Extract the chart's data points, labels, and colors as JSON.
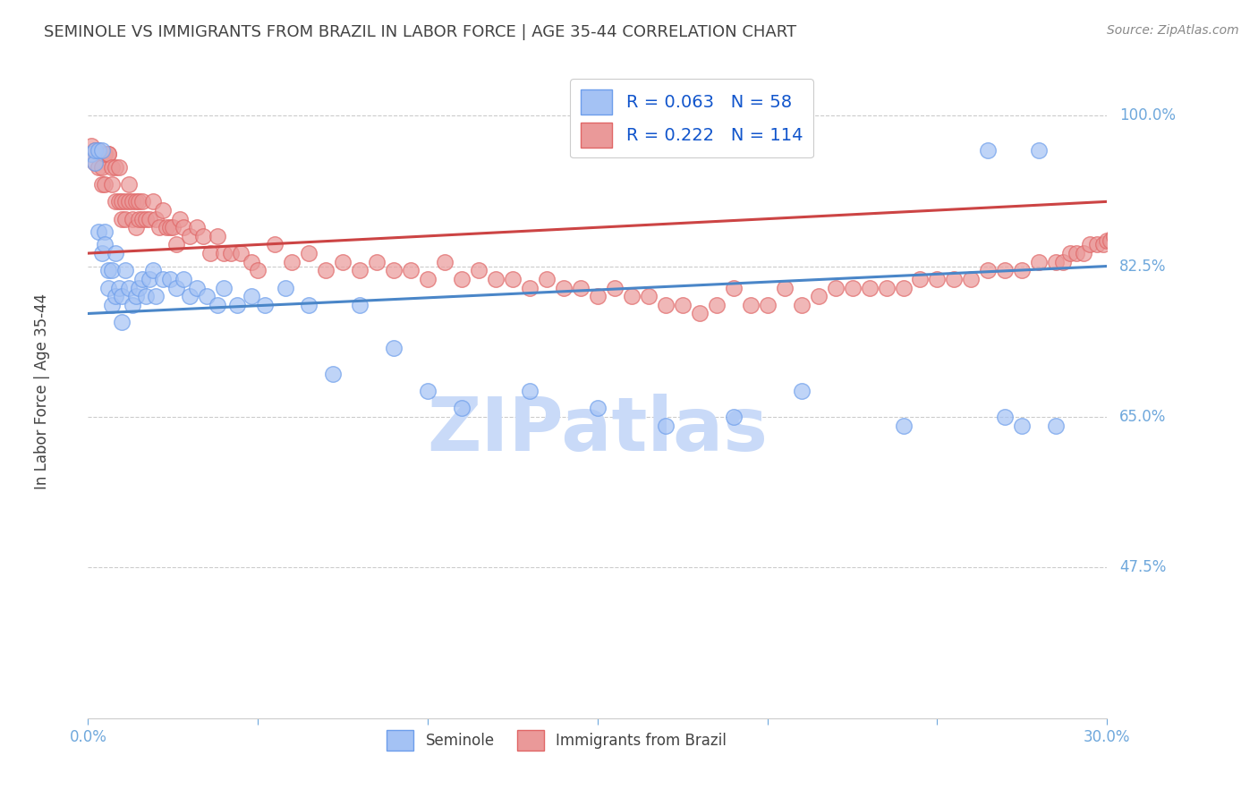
{
  "title": "SEMINOLE VS IMMIGRANTS FROM BRAZIL IN LABOR FORCE | AGE 35-44 CORRELATION CHART",
  "source": "Source: ZipAtlas.com",
  "ylabel": "In Labor Force | Age 35-44",
  "xlim": [
    0.0,
    0.3
  ],
  "ylim": [
    0.3,
    1.06
  ],
  "blue_R": 0.063,
  "blue_N": 58,
  "pink_R": 0.222,
  "pink_N": 114,
  "blue_color": "#a4c2f4",
  "pink_color": "#ea9999",
  "blue_edge_color": "#6d9eeb",
  "pink_edge_color": "#e06666",
  "blue_line_color": "#4a86c8",
  "pink_line_color": "#cc4444",
  "legend_text_color": "#1155cc",
  "title_color": "#434343",
  "axis_label_color": "#434343",
  "tick_color": "#6fa8dc",
  "gridline_color": "#cccccc",
  "watermark_color": "#c9daf8",
  "ytick_vals": [
    0.475,
    0.65,
    0.825,
    1.0
  ],
  "ytick_labels": [
    "47.5%",
    "65.0%",
    "82.5%",
    "100.0%"
  ],
  "xtick_vals": [
    0.0,
    0.05,
    0.1,
    0.15,
    0.2,
    0.25,
    0.3
  ],
  "xtick_labels": [
    "0.0%",
    "",
    "",
    "",
    "",
    "",
    "30.0%"
  ],
  "blue_line_y0": 0.77,
  "blue_line_y1": 0.825,
  "pink_line_y0": 0.84,
  "pink_line_y1": 0.9,
  "blue_x": [
    0.001,
    0.002,
    0.002,
    0.003,
    0.003,
    0.004,
    0.004,
    0.005,
    0.005,
    0.006,
    0.006,
    0.007,
    0.007,
    0.008,
    0.008,
    0.009,
    0.01,
    0.01,
    0.011,
    0.012,
    0.013,
    0.014,
    0.015,
    0.016,
    0.017,
    0.018,
    0.019,
    0.02,
    0.022,
    0.024,
    0.026,
    0.028,
    0.03,
    0.032,
    0.035,
    0.038,
    0.04,
    0.044,
    0.048,
    0.052,
    0.058,
    0.065,
    0.072,
    0.08,
    0.09,
    0.1,
    0.11,
    0.13,
    0.15,
    0.17,
    0.19,
    0.21,
    0.24,
    0.265,
    0.27,
    0.275,
    0.28,
    0.285
  ],
  "blue_y": [
    0.955,
    0.945,
    0.96,
    0.865,
    0.96,
    0.84,
    0.96,
    0.865,
    0.85,
    0.82,
    0.8,
    0.82,
    0.78,
    0.79,
    0.84,
    0.8,
    0.79,
    0.76,
    0.82,
    0.8,
    0.78,
    0.79,
    0.8,
    0.81,
    0.79,
    0.81,
    0.82,
    0.79,
    0.81,
    0.81,
    0.8,
    0.81,
    0.79,
    0.8,
    0.79,
    0.78,
    0.8,
    0.78,
    0.79,
    0.78,
    0.8,
    0.78,
    0.7,
    0.78,
    0.73,
    0.68,
    0.66,
    0.68,
    0.66,
    0.64,
    0.65,
    0.68,
    0.64,
    0.96,
    0.65,
    0.64,
    0.96,
    0.64
  ],
  "pink_x": [
    0.001,
    0.001,
    0.002,
    0.002,
    0.003,
    0.003,
    0.004,
    0.004,
    0.005,
    0.005,
    0.006,
    0.006,
    0.007,
    0.007,
    0.008,
    0.008,
    0.009,
    0.009,
    0.01,
    0.01,
    0.011,
    0.011,
    0.012,
    0.012,
    0.013,
    0.013,
    0.014,
    0.014,
    0.015,
    0.015,
    0.016,
    0.016,
    0.017,
    0.018,
    0.019,
    0.02,
    0.021,
    0.022,
    0.023,
    0.024,
    0.025,
    0.026,
    0.027,
    0.028,
    0.03,
    0.032,
    0.034,
    0.036,
    0.038,
    0.04,
    0.042,
    0.045,
    0.048,
    0.05,
    0.055,
    0.06,
    0.065,
    0.07,
    0.075,
    0.08,
    0.085,
    0.09,
    0.095,
    0.1,
    0.105,
    0.11,
    0.115,
    0.12,
    0.125,
    0.13,
    0.135,
    0.14,
    0.145,
    0.15,
    0.155,
    0.16,
    0.165,
    0.17,
    0.175,
    0.18,
    0.185,
    0.19,
    0.195,
    0.2,
    0.205,
    0.21,
    0.215,
    0.22,
    0.225,
    0.23,
    0.235,
    0.24,
    0.245,
    0.25,
    0.255,
    0.26,
    0.265,
    0.27,
    0.275,
    0.28,
    0.285,
    0.287,
    0.289,
    0.291,
    0.293,
    0.295,
    0.297,
    0.299,
    0.3,
    0.301,
    0.302,
    0.303,
    0.304,
    0.305
  ],
  "pink_y": [
    0.955,
    0.965,
    0.945,
    0.96,
    0.96,
    0.94,
    0.94,
    0.92,
    0.92,
    0.955,
    0.955,
    0.955,
    0.94,
    0.92,
    0.94,
    0.9,
    0.94,
    0.9,
    0.9,
    0.88,
    0.9,
    0.88,
    0.92,
    0.9,
    0.9,
    0.88,
    0.9,
    0.87,
    0.9,
    0.88,
    0.9,
    0.88,
    0.88,
    0.88,
    0.9,
    0.88,
    0.87,
    0.89,
    0.87,
    0.87,
    0.87,
    0.85,
    0.88,
    0.87,
    0.86,
    0.87,
    0.86,
    0.84,
    0.86,
    0.84,
    0.84,
    0.84,
    0.83,
    0.82,
    0.85,
    0.83,
    0.84,
    0.82,
    0.83,
    0.82,
    0.83,
    0.82,
    0.82,
    0.81,
    0.83,
    0.81,
    0.82,
    0.81,
    0.81,
    0.8,
    0.81,
    0.8,
    0.8,
    0.79,
    0.8,
    0.79,
    0.79,
    0.78,
    0.78,
    0.77,
    0.78,
    0.8,
    0.78,
    0.78,
    0.8,
    0.78,
    0.79,
    0.8,
    0.8,
    0.8,
    0.8,
    0.8,
    0.81,
    0.81,
    0.81,
    0.81,
    0.82,
    0.82,
    0.82,
    0.83,
    0.83,
    0.83,
    0.84,
    0.84,
    0.84,
    0.85,
    0.85,
    0.85,
    0.855,
    0.855,
    0.86,
    0.86,
    0.865,
    0.865
  ]
}
